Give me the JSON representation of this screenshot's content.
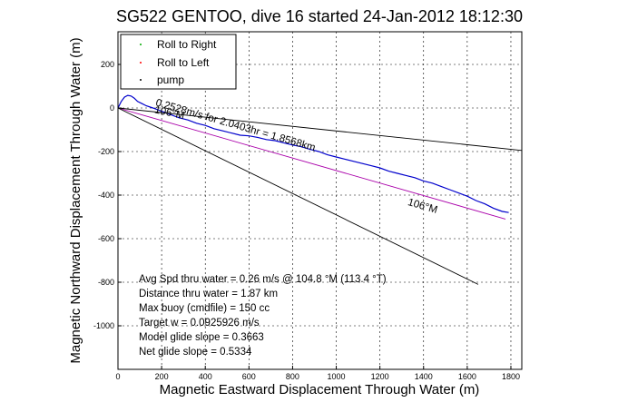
{
  "chart_data": {
    "type": "line",
    "title": "SG522 GENTOO, dive 16 started 24-Jan-2012 18:12:30",
    "xlabel": "Magnetic Eastward Displacement Through Water (m)",
    "ylabel": "Magnetic Northward Displacement Through Water (m)",
    "xlim": [
      0,
      1850
    ],
    "ylim": [
      -1200,
      350
    ],
    "xticks": [
      0,
      200,
      400,
      600,
      800,
      1000,
      1200,
      1400,
      1600,
      1800
    ],
    "yticks": [
      -1000,
      -800,
      -600,
      -400,
      -200,
      0,
      200
    ],
    "grid": true,
    "legend": {
      "placement": "top-left",
      "entries": [
        {
          "label": "Roll to Right",
          "color": "#00aa00",
          "marker": "dot"
        },
        {
          "label": "Roll to Left",
          "color": "#ff0000",
          "marker": "dot"
        },
        {
          "label": "pump",
          "color": "#000000",
          "marker": "dot"
        }
      ]
    },
    "series": [
      {
        "id": "track",
        "color": "#0000cc",
        "x": [
          0,
          15,
          30,
          45,
          60,
          75,
          90,
          110,
          130,
          160,
          200,
          240,
          280,
          320,
          360,
          400,
          440,
          480,
          520,
          560,
          600,
          640,
          680,
          720,
          760,
          800,
          840,
          880,
          920,
          960,
          1000,
          1040,
          1080,
          1120,
          1160,
          1200,
          1240,
          1280,
          1320,
          1360,
          1400,
          1440,
          1480,
          1520,
          1560,
          1600,
          1640,
          1680,
          1720,
          1760,
          1790
        ],
        "y": [
          0,
          30,
          50,
          58,
          55,
          45,
          30,
          20,
          10,
          0,
          -15,
          -30,
          -45,
          -55,
          -70,
          -80,
          -95,
          -105,
          -115,
          -125,
          -128,
          -135,
          -145,
          -150,
          -160,
          -170,
          -178,
          -190,
          -200,
          -215,
          -225,
          -235,
          -245,
          -255,
          -265,
          -275,
          -290,
          -300,
          -310,
          -320,
          -335,
          -345,
          -360,
          -375,
          -390,
          -405,
          -425,
          -440,
          -460,
          -475,
          -480
        ]
      },
      {
        "id": "avg-track",
        "color": "#aa00aa",
        "x": [
          0,
          1775
        ],
        "y": [
          0,
          -510
        ]
      },
      {
        "id": "heading-106",
        "color": "#000000",
        "x": [
          0,
          1650
        ],
        "y": [
          0,
          -810
        ]
      },
      {
        "id": "current-106",
        "color": "#000000",
        "x": [
          0,
          1850
        ],
        "y": [
          0,
          -195
        ]
      }
    ],
    "annotations": [
      {
        "text": "0.2528m/s for 2.0403hr = 1.8568km",
        "x": 170,
        "y": 12,
        "angle": 16
      },
      {
        "text": "106°M",
        "x": 165,
        "y": -22,
        "angle": 12
      },
      {
        "text": "106°M",
        "x": 1325,
        "y": -445,
        "angle": 16
      }
    ],
    "stats": [
      "Avg Spd thru water =  0.26 m/s @ 104.8   °M (113.4 °T)",
      "Distance thru water =  1.87 km",
      "Max buoy (cmdfile) = 150 cc",
      "Target w = 0.0925926 m/s",
      "Model glide slope = 0.3663",
      "Net glide slope = 0.5334"
    ]
  }
}
